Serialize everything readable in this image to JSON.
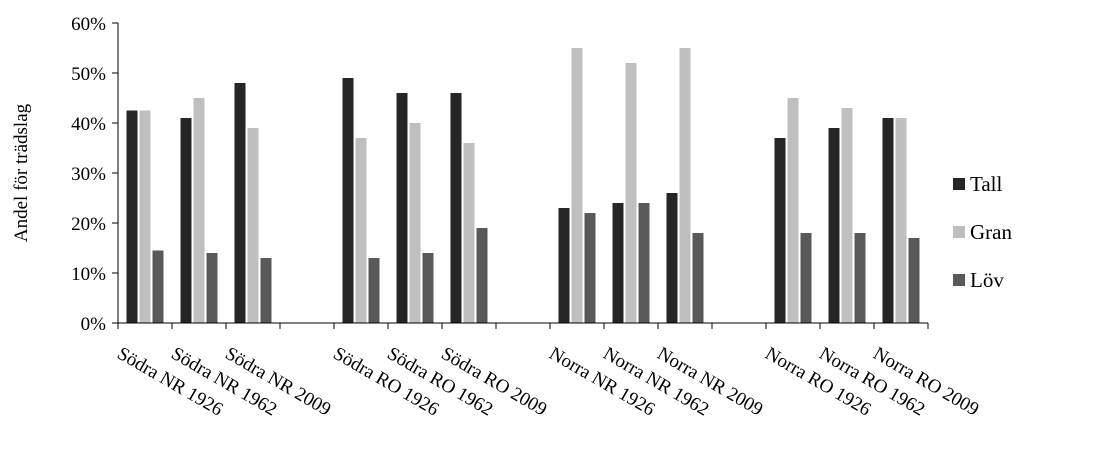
{
  "chart_data": {
    "type": "bar",
    "title": "",
    "xlabel": "",
    "ylabel": "Andel för trädslag",
    "ylim": [
      0,
      60
    ],
    "yticks": [
      "0%",
      "10%",
      "20%",
      "30%",
      "40%",
      "50%",
      "60%"
    ],
    "categories": [
      "Södra NR 1926",
      "Södra NR 1962",
      "Södra NR 2009",
      "",
      "Södra RO 1926",
      "Södra RO 1962",
      "Södra RO 2009",
      "",
      "Norra NR 1926",
      "Norra NR 1962",
      "Norra NR 2009",
      "",
      "Norra RO 1926",
      "Norra RO 1962",
      "Norra RO 2009"
    ],
    "series": [
      {
        "name": "Tall",
        "color": "#262626",
        "values": [
          42.5,
          41,
          48,
          null,
          49,
          46,
          46,
          null,
          23,
          24,
          26,
          null,
          37,
          39,
          41
        ]
      },
      {
        "name": "Gran",
        "color": "#bfbfbf",
        "values": [
          42.5,
          45,
          39,
          null,
          37,
          40,
          36,
          null,
          55,
          52,
          55,
          null,
          45,
          43,
          41
        ]
      },
      {
        "name": "Löv",
        "color": "#595959",
        "values": [
          14.5,
          14,
          13,
          null,
          13,
          14,
          19,
          null,
          22,
          24,
          18,
          null,
          18,
          18,
          17
        ]
      }
    ],
    "legend_position": "right",
    "grid": false
  }
}
